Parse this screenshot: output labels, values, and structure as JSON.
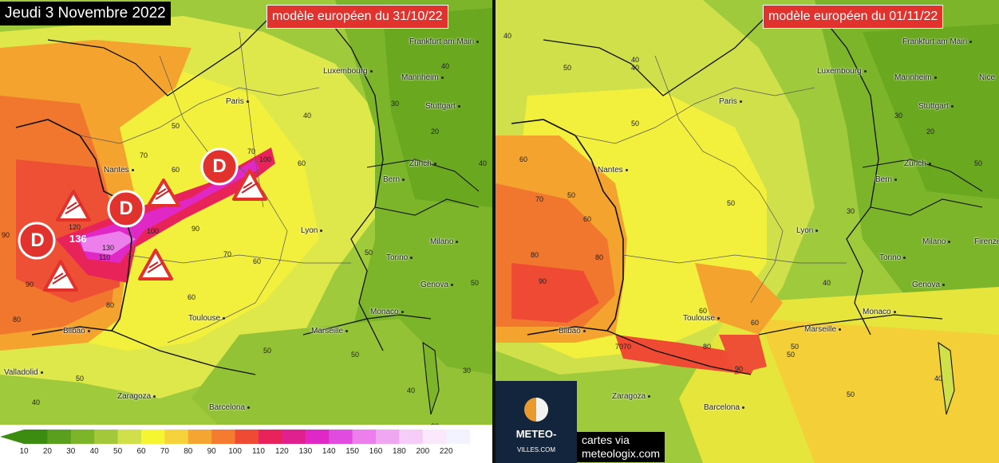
{
  "date_title": "Jeudi 3 Novembre 2022",
  "left_map": {
    "model_label": "modèle européen du 31/10/22",
    "cities": [
      "Frankfurt am Main",
      "Luxembourg",
      "Mannheim",
      "Paris",
      "Stuttgart",
      "Nantes",
      "Zürich",
      "Bern",
      "Lyon",
      "Milano",
      "Torino",
      "Genova",
      "Monaco",
      "Toulouse",
      "Marseille",
      "Bilbao",
      "Valladolid",
      "Zaragoza",
      "Barcelona"
    ],
    "marker_letter": "D",
    "max_gust_label": "136",
    "values": [
      "90",
      "80",
      "90",
      "120",
      "110",
      "130",
      "100",
      "90",
      "80",
      "70",
      "60",
      "50",
      "40",
      "30",
      "20",
      "100",
      "70",
      "60",
      "60",
      "50",
      "40",
      "40",
      "50",
      "30",
      "50",
      "60",
      "70",
      "50",
      "40",
      "30",
      "50",
      "40"
    ]
  },
  "right_map": {
    "model_label": "modèle européen du 01/11/22",
    "cities": [
      "Frankfurt am Main",
      "Luxembourg",
      "Mannheim",
      "Paris",
      "Stuttgart",
      "Nantes",
      "Zürich",
      "Bern",
      "Lyon",
      "Milano",
      "Torino",
      "Genova",
      "Monaco",
      "Toulouse",
      "Marseille",
      "Bilbao",
      "Zaragoza",
      "Barcelona",
      "Firenze",
      "Nice"
    ],
    "values": [
      "40",
      "50",
      "60",
      "70",
      "80",
      "90",
      "50",
      "40",
      "30",
      "20",
      "50",
      "60",
      "70",
      "80",
      "90",
      "40",
      "50",
      "60",
      "50",
      "40",
      "30",
      "50",
      "50",
      "40",
      "50",
      "60",
      "70",
      "80"
    ]
  },
  "legend": {
    "ticks": [
      "10",
      "20",
      "30",
      "40",
      "50",
      "60",
      "70",
      "80",
      "90",
      "100",
      "110",
      "120",
      "130",
      "140",
      "150",
      "160",
      "180",
      "200",
      "220"
    ],
    "colors": [
      "#3c8c12",
      "#5aa01e",
      "#7db52a",
      "#a3c93a",
      "#cfe04a",
      "#f5f532",
      "#f7d23a",
      "#f5a531",
      "#f47b2f",
      "#ee4a34",
      "#e8235a",
      "#e0208f",
      "#e028c6",
      "#e24be0",
      "#ec7fec",
      "#f1a6f2",
      "#f6cdf8",
      "#fbe8fc",
      "#f3f3ff"
    ]
  },
  "logo": {
    "line1": "METEO-",
    "line2": "VILLES.COM"
  },
  "credit": {
    "line1": "cartes via",
    "line2": "meteologix.com"
  }
}
